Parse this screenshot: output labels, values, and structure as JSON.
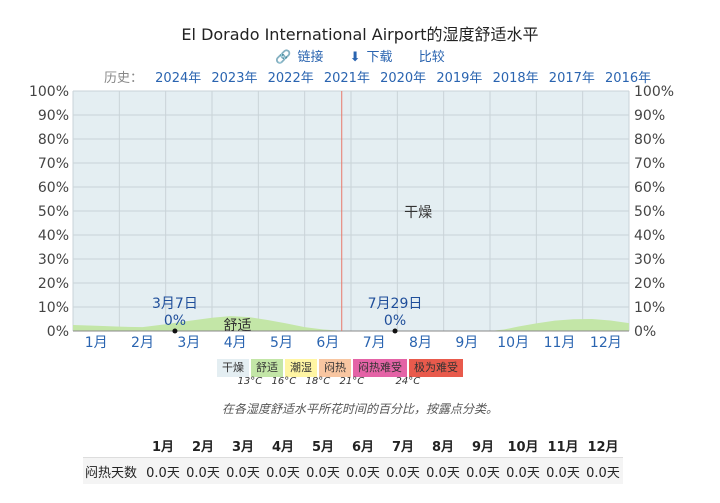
{
  "page": {
    "title": "El Dorado International Airport的湿度舒适水平",
    "links": [
      {
        "icon": "link-icon",
        "label": "链接"
      },
      {
        "icon": "download-icon",
        "label": "下载"
      },
      {
        "icon": "",
        "label": "比较"
      }
    ],
    "history_label": "历史：",
    "years": [
      "2024年",
      "2023年",
      "2022年",
      "2021年",
      "2020年",
      "2019年",
      "2018年",
      "2017年",
      "2016年"
    ],
    "caption": "在各湿度舒适水平所花时间的百分比，按露点分类。"
  },
  "chart_data": {
    "type": "area",
    "months": [
      "1月",
      "2月",
      "3月",
      "4月",
      "5月",
      "6月",
      "7月",
      "8月",
      "9月",
      "10月",
      "11月",
      "12月"
    ],
    "yticks": [
      "0%",
      "10%",
      "20%",
      "30%",
      "40%",
      "50%",
      "60%",
      "70%",
      "80%",
      "90%",
      "100%"
    ],
    "ylim": [
      0,
      100
    ],
    "series": [
      {
        "name": "舒适",
        "color": "#c3e6a7",
        "points": [
          [
            0,
            2.5
          ],
          [
            0.5,
            2.2
          ],
          [
            1,
            1.8
          ],
          [
            1.5,
            1.6
          ],
          [
            2,
            2.8
          ],
          [
            2.5,
            4.2
          ],
          [
            3,
            5.5
          ],
          [
            3.4,
            6.2
          ],
          [
            3.8,
            5.8
          ],
          [
            4.2,
            4.6
          ],
          [
            4.6,
            3.2
          ],
          [
            5,
            1.6
          ],
          [
            5.4,
            0.6
          ],
          [
            5.8,
            0.1
          ],
          [
            6,
            0
          ],
          [
            9,
            0
          ],
          [
            9.3,
            0.6
          ],
          [
            9.6,
            1.8
          ],
          [
            10,
            3.2
          ],
          [
            10.4,
            4.3
          ],
          [
            10.8,
            4.9
          ],
          [
            11.2,
            5
          ],
          [
            11.6,
            4.4
          ],
          [
            12,
            3.3
          ]
        ]
      },
      {
        "name": "干燥",
        "color": "#e4eef2"
      }
    ],
    "area_labels": [
      {
        "text": "干燥",
        "x": 7.45,
        "y": 50
      },
      {
        "text": "舒适",
        "x": 3.55,
        "y": 3
      }
    ],
    "annotations": [
      {
        "date": "3月7日",
        "value": "0%",
        "x": 2.2,
        "y": 0
      },
      {
        "date": "7月29日",
        "value": "0%",
        "x": 6.95,
        "y": 0
      }
    ],
    "marker_x": 5.8,
    "marker_color": "#e8796a",
    "legend": [
      {
        "label": "干燥",
        "color": "#e4eef2"
      },
      {
        "label": "舒适",
        "color": "#c3e6a7"
      },
      {
        "label": "潮湿",
        "color": "#fff5a3"
      },
      {
        "label": "闷热",
        "color": "#f8c6a1"
      },
      {
        "label": "闷热难受",
        "color": "#e463a6"
      },
      {
        "label": "极为难受",
        "color": "#e85a4c"
      }
    ],
    "thresholds": [
      "13°C",
      "16°C",
      "18°C",
      "21°C",
      "24°C"
    ]
  },
  "table": {
    "row_label": "闷热天数",
    "values": [
      "0.0天",
      "0.0天",
      "0.0天",
      "0.0天",
      "0.0天",
      "0.0天",
      "0.0天",
      "0.0天",
      "0.0天",
      "0.0天",
      "0.0天",
      "0.0天"
    ]
  }
}
